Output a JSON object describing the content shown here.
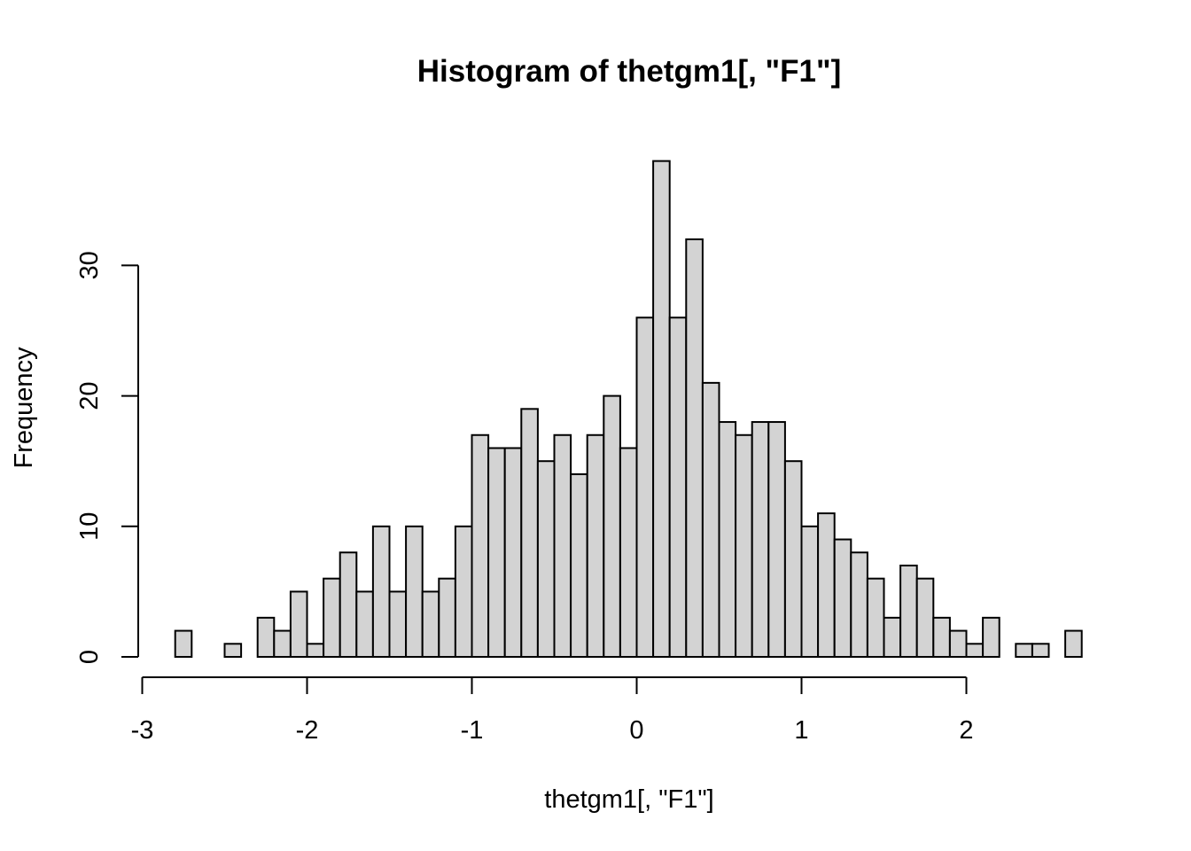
{
  "chart_data": {
    "type": "bar",
    "title": "Histogram of thetgm1[, \"F1\"]",
    "xlabel": "thetgm1[, \"F1\"]",
    "ylabel": "Frequency",
    "bin_width": 0.1,
    "bin_start": -2.8,
    "values": [
      2,
      0,
      0,
      1,
      0,
      3,
      2,
      5,
      1,
      6,
      8,
      5,
      10,
      5,
      10,
      5,
      6,
      10,
      17,
      16,
      16,
      19,
      15,
      17,
      14,
      17,
      20,
      16,
      26,
      38,
      26,
      32,
      21,
      18,
      17,
      18,
      18,
      15,
      10,
      11,
      9,
      8,
      6,
      3,
      7,
      6,
      3,
      2,
      1,
      3,
      0,
      1,
      1,
      0,
      2
    ],
    "xlim": [
      -3,
      2
    ],
    "ylim": [
      0,
      38
    ],
    "x_ticks": [
      "-3",
      "-2",
      "-1",
      "0",
      "1",
      "2"
    ],
    "x_tick_values": [
      -3,
      -2,
      -1,
      0,
      1,
      2
    ],
    "y_ticks": [
      "0",
      "10",
      "20",
      "30"
    ],
    "y_tick_values": [
      0,
      10,
      20,
      30
    ],
    "bar_fill": "#d3d3d3",
    "grid": false
  }
}
